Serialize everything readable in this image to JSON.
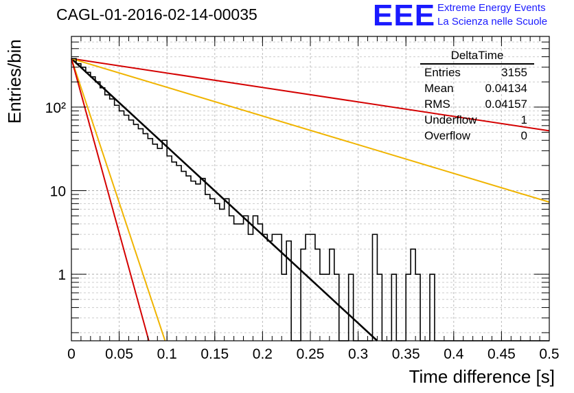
{
  "header": {
    "title": "CAGL-01-2016-02-14-00035",
    "logo_text": "EEE",
    "logo_line1": "Extreme Energy Events",
    "logo_line2": "La Scienza nelle Scuole"
  },
  "stats_box": {
    "name": "DeltaTime",
    "rows": [
      {
        "label": "Entries",
        "value": "3155"
      },
      {
        "label": "Mean",
        "value": "0.04134"
      },
      {
        "label": "RMS",
        "value": "0.04157"
      },
      {
        "label": "Underflow",
        "value": "1"
      },
      {
        "label": "Overflow",
        "value": "0"
      }
    ]
  },
  "chart_data": {
    "type": "line",
    "title": "CAGL-01-2016-02-14-00035",
    "xlabel": "Time difference [s]",
    "ylabel": "Entries/bin",
    "xlim": [
      0,
      0.5
    ],
    "ylim": [
      0.16,
      700
    ],
    "yscale": "log",
    "grid": true,
    "x_ticks": [
      "0",
      "0.05",
      "0.1",
      "0.15",
      "0.2",
      "0.25",
      "0.3",
      "0.35",
      "0.4",
      "0.45",
      "0.5"
    ],
    "y_ticks": [
      "1",
      "10",
      "10²"
    ],
    "y_tick_values": [
      1,
      10,
      100
    ],
    "histogram": {
      "bin_width": 0.005,
      "color": "#000000",
      "values": [
        380,
        330,
        300,
        260,
        230,
        200,
        170,
        140,
        125,
        105,
        90,
        80,
        70,
        62,
        55,
        48,
        42,
        36,
        32,
        40,
        26,
        22,
        20,
        17,
        15,
        13,
        12,
        14,
        9,
        8,
        7,
        6,
        8,
        5,
        4,
        4,
        5,
        3,
        5,
        4,
        3,
        2.5,
        3,
        3,
        1,
        2.5,
        0,
        0,
        2,
        3,
        3,
        2,
        1,
        1,
        2,
        1,
        0,
        0,
        1,
        0,
        0,
        0,
        0,
        3,
        1,
        0,
        0,
        1,
        0,
        0,
        1,
        2,
        1,
        0,
        0,
        1,
        0,
        0,
        0,
        0,
        0,
        0,
        0,
        0,
        0,
        0,
        0,
        0,
        0,
        0,
        0,
        0,
        0,
        0,
        0,
        0,
        0,
        0,
        0,
        0
      ]
    },
    "curves": [
      {
        "color": "#000000",
        "x0": 0,
        "y0": 380,
        "x1": 0.32,
        "y1": 0.16
      },
      {
        "color": "#d40000",
        "x0": 0,
        "y0": 380,
        "x1": 0.5,
        "y1": 52
      },
      {
        "color": "#f0b400",
        "x0": 0,
        "y0": 380,
        "x1": 0.5,
        "y1": 7.3
      },
      {
        "color": "#f0b400",
        "x0": 0,
        "y0": 380,
        "x1": 0.098,
        "y1": 0.16
      },
      {
        "color": "#d40000",
        "x0": 0,
        "y0": 380,
        "x1": 0.081,
        "y1": 0.16
      }
    ]
  }
}
